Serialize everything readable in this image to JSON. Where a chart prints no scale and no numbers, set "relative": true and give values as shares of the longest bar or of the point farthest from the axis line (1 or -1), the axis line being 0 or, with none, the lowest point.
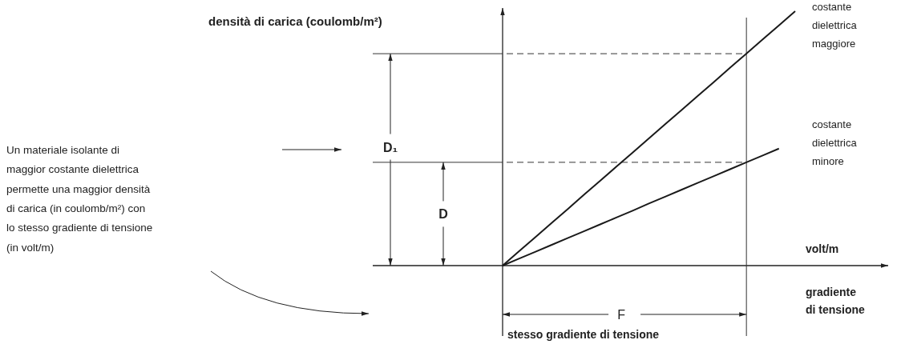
{
  "chart_data": {
    "type": "line",
    "relative": true,
    "xlabel": "gradiente\ndi tensione",
    "categories": [
      null,
      null,
      null,
      null,
      null,
      null,
      null,
      null,
      null,
      null,
      null,
      null,
      null,
      null,
      null,
      null,
      null,
      null,
      null
    ],
    "series": [
      {
        "name": "costante\ndielettrica\nmaggiore",
        "color": "#1a1a1a",
        "values": [
          0,
          0.056,
          0.111,
          0.167,
          0.222,
          0.278,
          0.333,
          0.389,
          0.444,
          0.5,
          0.556,
          0.611,
          0.667,
          0.722,
          0.778,
          0.833,
          0.889,
          0.944,
          1
        ]
      },
      {
        "name": "costante\ndielettrica\nminore",
        "color": "#1a1a1a",
        "values": [
          0,
          0.027,
          0.054,
          0.081,
          0.108,
          0.135,
          0.162,
          0.189,
          0.216,
          0.244,
          0.271,
          0.298,
          0.325,
          0.352,
          0.379,
          0.406,
          0.433,
          0.46,
          null
        ]
      }
    ],
    "ref_lines": [
      {
        "axis": "y",
        "value": 0.833,
        "label": "D₁",
        "line_style": "dashed"
      },
      {
        "axis": "y",
        "value": 0.406,
        "label": "D",
        "line_style": "dashed"
      }
    ],
    "annotations": [
      "densità di carica (coulomb/m²)",
      "volt/m",
      "F",
      "Un materiale isolante di\nmaggior costante dielettrica\npermette una maggior densità\ndi carica (in coulomb/m²) con\nlo stesso gradiente di tensione\n(in volt/m)",
      "stesso gradiente di tensione"
    ]
  }
}
